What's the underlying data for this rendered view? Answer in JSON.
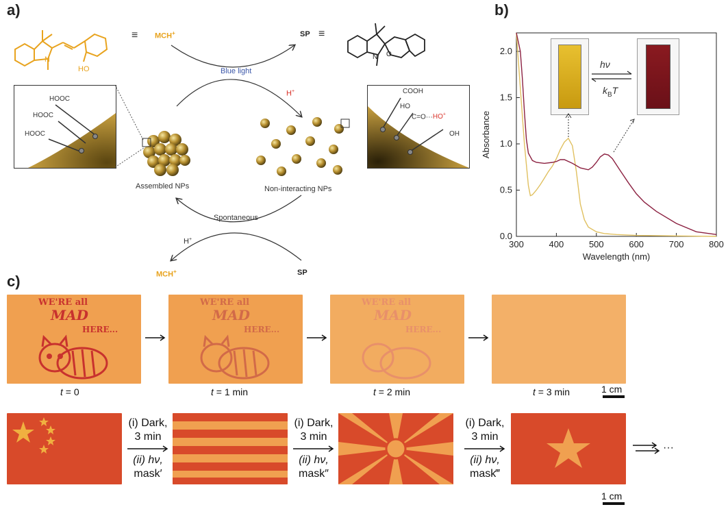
{
  "panel_a": {
    "label": "a)",
    "mch_label": "MCH",
    "mch_charge": "+",
    "sp_label": "SP",
    "equiv": "≡",
    "oh_text": "HO",
    "n_text": "N",
    "blue_light": "Blue light",
    "h_plus_red": "H",
    "h_plus_black": "H",
    "spontaneous": "Spontaneous",
    "assembled": "Assembled NPs",
    "noninteracting": "Non-interacting NPs",
    "ligands_left": [
      "HOOC",
      "HOOC",
      "HOOC"
    ],
    "ligand_right_top": "COOH",
    "ligand_right_ho": "HO",
    "ligand_right_co": "C=O···HO",
    "ligand_right_oh": "OH",
    "ligand_right_c": "C",
    "ligand_right_o": "O",
    "colors": {
      "gold": "#e8a31e",
      "blue": "#3a56a8",
      "red": "#d9342b"
    }
  },
  "panel_b": {
    "label": "b)",
    "hv": "hν",
    "kbt": "kBT"
  },
  "chart_data": {
    "type": "line",
    "title": "",
    "xlabel": "Wavelength (nm)",
    "ylabel": "Absorbance",
    "xlim": [
      300,
      800
    ],
    "ylim": [
      0,
      2.2
    ],
    "xticks": [
      "300",
      "400",
      "500",
      "600",
      "700",
      "800"
    ],
    "yticks": [
      "0.0",
      "0.5",
      "1.0",
      "1.5",
      "2.0"
    ],
    "series": [
      {
        "color": "#e0c060",
        "x": [
          300,
          310,
          320,
          330,
          335,
          340,
          350,
          360,
          370,
          380,
          390,
          400,
          410,
          420,
          430,
          440,
          450,
          460,
          470,
          480,
          500,
          520,
          550,
          600,
          700,
          800
        ],
        "y": [
          2.2,
          1.6,
          1.0,
          0.55,
          0.44,
          0.45,
          0.5,
          0.56,
          0.63,
          0.7,
          0.76,
          0.84,
          0.94,
          1.02,
          1.06,
          0.98,
          0.7,
          0.35,
          0.18,
          0.1,
          0.05,
          0.03,
          0.02,
          0.01,
          0.005,
          0.0
        ]
      },
      {
        "color": "#8b2040",
        "x": [
          300,
          310,
          315,
          320,
          325,
          330,
          340,
          350,
          370,
          390,
          400,
          410,
          420,
          440,
          460,
          480,
          490,
          500,
          510,
          520,
          530,
          540,
          560,
          580,
          600,
          620,
          650,
          700,
          750,
          800
        ],
        "y": [
          2.2,
          2.0,
          1.7,
          1.35,
          1.05,
          0.9,
          0.82,
          0.8,
          0.79,
          0.8,
          0.81,
          0.83,
          0.83,
          0.79,
          0.74,
          0.72,
          0.75,
          0.8,
          0.86,
          0.89,
          0.88,
          0.84,
          0.71,
          0.58,
          0.46,
          0.37,
          0.27,
          0.14,
          0.05,
          0.02
        ]
      }
    ]
  },
  "panel_c": {
    "label": "c)",
    "times": [
      "t",
      "t",
      "t",
      "t"
    ],
    "time_values": [
      " = 0",
      " = 1 min",
      " = 2 min",
      " = 3 min"
    ],
    "scale": "1 cm",
    "step_i": "(i) Dark,",
    "step_i2": "3 min",
    "step_ii": "(ii) hν,",
    "masks": [
      "mask′",
      "mask″",
      "mask‴"
    ],
    "img_text1": "WE'RE all",
    "img_text2": "MAD",
    "img_text3": "HERE...",
    "ellipsis": "···",
    "colors": {
      "orange_bg": "#f0a050",
      "red_print": "#c8322e",
      "flag_red": "#d84a2a",
      "flag_star": "#f0b040"
    }
  }
}
